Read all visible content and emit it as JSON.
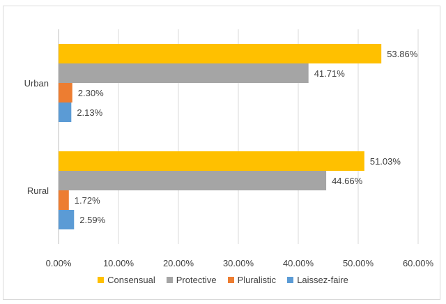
{
  "chart_data": {
    "type": "bar",
    "orientation": "horizontal",
    "categories": [
      "Urban",
      "Rural"
    ],
    "series": [
      {
        "name": "Consensual",
        "color": "#FFC000",
        "values": [
          53.86,
          51.03
        ],
        "labels": [
          "53.86%",
          "51.03%"
        ]
      },
      {
        "name": "Protective",
        "color": "#A5A5A5",
        "values": [
          41.71,
          44.66
        ],
        "labels": [
          "41.71%",
          "44.66%"
        ]
      },
      {
        "name": "Pluralistic",
        "color": "#ED7D31",
        "values": [
          2.3,
          1.72
        ],
        "labels": [
          "2.30%",
          "1.72%"
        ]
      },
      {
        "name": "Laissez-faire",
        "color": "#5B9BD5",
        "values": [
          2.13,
          2.59
        ],
        "labels": [
          "2.13%",
          "2.59%"
        ]
      }
    ],
    "xlim": [
      0,
      60
    ],
    "xticks": [
      0,
      10,
      20,
      30,
      40,
      50,
      60
    ],
    "xtick_labels": [
      "0.00%",
      "10.00%",
      "20.00%",
      "30.00%",
      "40.00%",
      "50.00%",
      "60.00%"
    ],
    "title": "",
    "xlabel": "",
    "ylabel": "",
    "grid": true,
    "legend_position": "bottom"
  }
}
